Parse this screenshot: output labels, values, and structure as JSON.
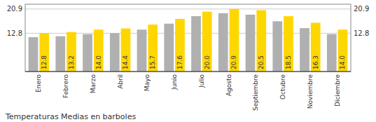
{
  "chart_data": {
    "type": "bar",
    "title": "Temperaturas Medias en barboles",
    "categories": [
      "Enero",
      "Febrero",
      "Marzo",
      "Abril",
      "Mayo",
      "Junio",
      "Julio",
      "Agosto",
      "Septiembre",
      "Octubre",
      "Noviembre",
      "Diciembre"
    ],
    "series": [
      {
        "color": "#B0B0B0",
        "values": [
          11.5,
          11.8,
          12.5,
          12.8,
          14.0,
          16.0,
          18.5,
          19.5,
          19.0,
          16.8,
          14.5,
          12.5
        ]
      },
      {
        "color": "#FFD700",
        "values": [
          12.8,
          13.2,
          14.0,
          14.4,
          15.7,
          17.6,
          20.0,
          20.9,
          20.5,
          18.5,
          16.3,
          14.0
        ],
        "data_labels": true,
        "value_labels": [
          "12.8",
          "13.2",
          "14.0",
          "14.4",
          "15.7",
          "17.6",
          "20.0",
          "20.9",
          "20.5",
          "18.5",
          "16.3",
          "14.0"
        ]
      }
    ],
    "ylim": [
      0,
      22.5
    ],
    "yticks": [
      12.8,
      20.9
    ],
    "y2lim": [
      0,
      22.5
    ],
    "y2ticks": [
      12.8,
      20.9
    ],
    "grid": true
  }
}
